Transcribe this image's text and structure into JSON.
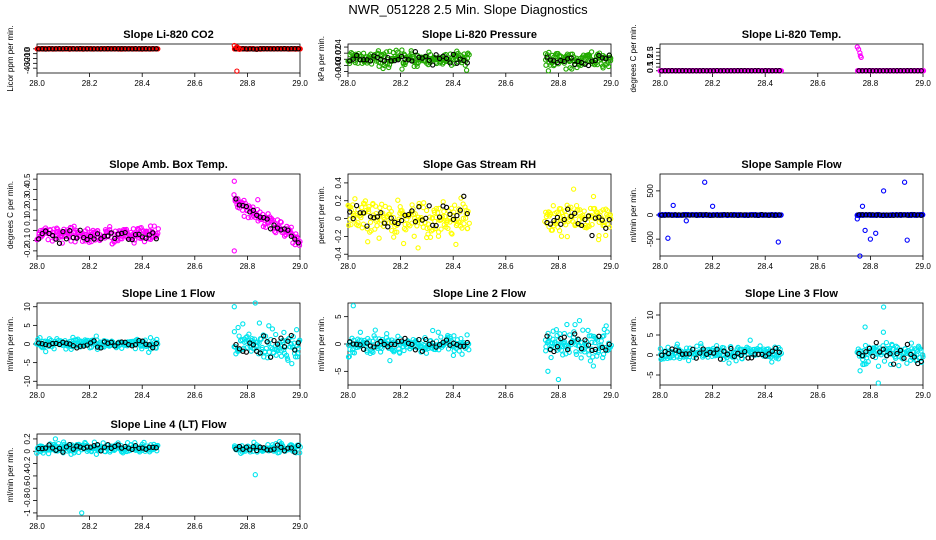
{
  "figure_title": "NWR_051228  2.5 Min. Slope Diagnostics",
  "chart_data": [
    {
      "type": "scatter",
      "title": "Slope Li-820 CO2",
      "ylabel": "Licor ppm per min.",
      "color": "#ff0000",
      "xlim": [
        28.0,
        29.0
      ],
      "ylim": [
        -50,
        10
      ],
      "yticks": [
        0,
        -10,
        -20,
        -30,
        -40
      ],
      "xticks": [
        28.0,
        28.2,
        28.4,
        28.6,
        28.8,
        29.0
      ],
      "segments": [
        [
          28.0,
          28.46
        ],
        [
          28.75,
          29.0
        ]
      ],
      "center": 0,
      "spread": 0.5,
      "outliers": [
        [
          28.75,
          7
        ],
        [
          28.76,
          4
        ],
        [
          28.765,
          2
        ],
        [
          28.77,
          -1
        ],
        [
          28.76,
          -46
        ]
      ]
    },
    {
      "type": "scatter",
      "title": "Slope Li-820 Pressure",
      "ylabel": "kPa per min.",
      "color": "#22aa00",
      "xlim": [
        28.0,
        29.0
      ],
      "ylim": [
        -0.045,
        0.05
      ],
      "yticks": [
        -0.04,
        -0.02,
        0.0,
        0.02,
        0.04
      ],
      "xticks": [
        28.0,
        28.2,
        28.4,
        28.6,
        28.8,
        29.0
      ],
      "segments": [
        [
          28.0,
          28.46
        ],
        [
          28.75,
          29.0
        ]
      ],
      "center": 0,
      "spread": 0.028,
      "outliers": []
    },
    {
      "type": "scatter",
      "title": "Slope Li-820 Temp.",
      "ylabel": "degrees C per min.",
      "color": "#ff00ff",
      "xlim": [
        28.0,
        29.0
      ],
      "ylim": [
        -0.3,
        3.6
      ],
      "yticks": [
        0.0,
        0.5,
        1.0,
        1.5,
        2.0,
        2.5,
        3.0
      ],
      "xticks": [
        28.0,
        28.2,
        28.4,
        28.6,
        28.8,
        29.0
      ],
      "segments": [
        [
          28.0,
          28.46
        ],
        [
          28.75,
          29.0
        ]
      ],
      "center": 0,
      "spread": 0.02,
      "outliers": [
        [
          28.75,
          3.2
        ],
        [
          28.755,
          2.9
        ],
        [
          28.76,
          2.4
        ],
        [
          28.762,
          2.0
        ],
        [
          28.765,
          1.8
        ]
      ]
    },
    {
      "type": "scatter",
      "title": "Slope Amb. Box Temp.",
      "ylabel": "degrees C per min.",
      "color": "#ff00ff",
      "xlim": [
        28.0,
        29.0
      ],
      "ylim": [
        -0.25,
        0.55
      ],
      "yticks": [
        -0.2,
        -0.1,
        0.0,
        0.1,
        0.2,
        0.3,
        0.4,
        0.5
      ],
      "xticks": [
        28.0,
        28.2,
        28.4,
        28.6,
        28.8,
        29.0
      ],
      "segments": [
        [
          28.0,
          28.46
        ],
        [
          28.75,
          29.0
        ]
      ],
      "center": -0.05,
      "spread": 0.09,
      "trend_segment2": [
        0.3,
        -0.1
      ],
      "outliers": [
        [
          28.75,
          0.48
        ],
        [
          28.75,
          -0.2
        ]
      ]
    },
    {
      "type": "scatter",
      "title": "Slope Gas Stream RH",
      "ylabel": "percent per min.",
      "color": "#ffff00",
      "xlim": [
        28.0,
        29.0
      ],
      "ylim": [
        -0.42,
        0.5
      ],
      "yticks": [
        -0.4,
        -0.2,
        0.0,
        0.2,
        0.4
      ],
      "xticks": [
        28.0,
        28.2,
        28.4,
        28.6,
        28.8,
        29.0
      ],
      "segments": [
        [
          28.0,
          28.46
        ],
        [
          28.75,
          29.0
        ]
      ],
      "center": 0,
      "spread": 0.22,
      "outliers": []
    },
    {
      "type": "scatter",
      "title": "Slope Sample Flow",
      "ylabel": "ml/min per min.",
      "color": "#0000ff",
      "xlim": [
        28.0,
        29.0
      ],
      "ylim": [
        -850,
        850
      ],
      "yticks": [
        -500,
        0,
        500
      ],
      "xticks": [
        28.0,
        28.2,
        28.4,
        28.6,
        28.8,
        29.0
      ],
      "segments": [
        [
          28.0,
          28.46
        ],
        [
          28.75,
          29.0
        ]
      ],
      "center": 0,
      "spread": 8,
      "outliers": [
        [
          28.03,
          -480
        ],
        [
          28.05,
          200
        ],
        [
          28.1,
          -120
        ],
        [
          28.17,
          680
        ],
        [
          28.2,
          180
        ],
        [
          28.45,
          -560
        ],
        [
          28.75,
          -80
        ],
        [
          28.77,
          180
        ],
        [
          28.78,
          -320
        ],
        [
          28.8,
          -500
        ],
        [
          28.82,
          -380
        ],
        [
          28.76,
          -850
        ],
        [
          28.85,
          500
        ],
        [
          28.93,
          680
        ],
        [
          28.94,
          -520
        ]
      ]
    },
    {
      "type": "scatter",
      "title": "Slope Line 1 Flow",
      "ylabel": "ml/min per min.",
      "color": "#00e5ee",
      "xlim": [
        28.0,
        29.0
      ],
      "ylim": [
        -11,
        11
      ],
      "yticks": [
        -10,
        -5,
        0,
        5,
        10
      ],
      "xticks": [
        28.0,
        28.2,
        28.4,
        28.6,
        28.8,
        29.0
      ],
      "segments": [
        [
          28.0,
          28.46
        ],
        [
          28.75,
          29.0
        ]
      ],
      "center": 0,
      "spread": 1.5,
      "spread_segment2": 5,
      "outliers": [
        [
          28.83,
          11
        ],
        [
          28.75,
          10
        ]
      ]
    },
    {
      "type": "scatter",
      "title": "Slope Line 2 Flow",
      "ylabel": "ml/min per min.",
      "color": "#00e5ee",
      "xlim": [
        28.0,
        29.0
      ],
      "ylim": [
        -7.5,
        7.5
      ],
      "yticks": [
        -5,
        0,
        5
      ],
      "xticks": [
        28.0,
        28.2,
        28.4,
        28.6,
        28.8,
        29.0
      ],
      "segments": [
        [
          28.0,
          28.46
        ],
        [
          28.75,
          29.0
        ]
      ],
      "center": 0,
      "spread": 2.0,
      "spread_segment2": 3.2,
      "outliers": [
        [
          28.02,
          7
        ],
        [
          28.8,
          -6.5
        ],
        [
          28.76,
          -5
        ]
      ]
    },
    {
      "type": "scatter",
      "title": "Slope Line 3 Flow",
      "ylabel": "ml/min per min.",
      "color": "#00e5ee",
      "xlim": [
        28.0,
        29.0
      ],
      "ylim": [
        -7.5,
        13
      ],
      "yticks": [
        -5,
        0,
        5,
        10
      ],
      "xticks": [
        28.0,
        28.2,
        28.4,
        28.6,
        28.8,
        29.0
      ],
      "segments": [
        [
          28.0,
          28.46
        ],
        [
          28.75,
          29.0
        ]
      ],
      "center": 0.5,
      "spread": 2.0,
      "spread_segment2": 3.5,
      "outliers": [
        [
          28.85,
          12
        ],
        [
          28.83,
          -7
        ],
        [
          28.78,
          7
        ]
      ]
    },
    {
      "type": "scatter",
      "title": "Slope Line 4 (LT) Flow",
      "ylabel": "ml/min per min.",
      "color": "#00e5ee",
      "xlim": [
        28.0,
        29.0
      ],
      "ylim": [
        -1.05,
        0.28
      ],
      "yticks": [
        -1.0,
        -0.8,
        -0.6,
        -0.4,
        -0.2,
        0.0,
        0.2
      ],
      "xticks": [
        28.0,
        28.2,
        28.4,
        28.6,
        28.8,
        29.0
      ],
      "segments": [
        [
          28.0,
          28.46
        ],
        [
          28.75,
          29.0
        ]
      ],
      "center": 0.05,
      "spread": 0.09,
      "outliers": [
        [
          28.17,
          -1.0
        ],
        [
          28.83,
          -0.38
        ],
        [
          28.07,
          0.2
        ]
      ]
    }
  ]
}
